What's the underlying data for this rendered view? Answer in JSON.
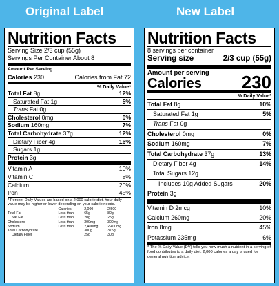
{
  "headings": {
    "original": "Original Label",
    "new": "New Label"
  },
  "original": {
    "title": "Nutrition Facts",
    "serving_size": "Serving Size 2/3 cup (55g)",
    "servings": "Servings Per Container About 8",
    "amount_per_serving": "Amount Per Serving",
    "calories_label": "Calories",
    "calories_value": "230",
    "calories_fat": "Calories from Fat 72",
    "dv_header": "% Daily Value*",
    "rows": [
      {
        "label": "Total Fat",
        "amount": "8g",
        "dv": "12%",
        "bold": true,
        "indent": 0
      },
      {
        "label": "Saturated Fat",
        "amount": "1g",
        "dv": "5%",
        "bold": false,
        "indent": 1
      },
      {
        "label": "Trans",
        "amount": "Fat 0g",
        "dv": "",
        "bold": false,
        "indent": 1,
        "italic": true
      },
      {
        "label": "Cholesterol",
        "amount": "0mg",
        "dv": "0%",
        "bold": true,
        "indent": 0
      },
      {
        "label": "Sodium",
        "amount": "160mg",
        "dv": "7%",
        "bold": true,
        "indent": 0
      },
      {
        "label": "Total Carbohydrate",
        "amount": "37g",
        "dv": "12%",
        "bold": true,
        "indent": 0
      },
      {
        "label": "Dietary Fiber",
        "amount": "4g",
        "dv": "16%",
        "bold": false,
        "indent": 1
      },
      {
        "label": "Sugars",
        "amount": "1g",
        "dv": "",
        "bold": false,
        "indent": 1
      },
      {
        "label": "Protein",
        "amount": "3g",
        "dv": "",
        "bold": true,
        "indent": 0
      }
    ],
    "vitamins": [
      {
        "label": "Vitamin A",
        "dv": "10%"
      },
      {
        "label": "Vitamin C",
        "dv": "8%"
      },
      {
        "label": "Calcium",
        "dv": "20%"
      },
      {
        "label": "Iron",
        "dv": "45%"
      }
    ],
    "footnote": "* Percent Daily Values are based on a 2,000 calorie diet. Your daily value may be higher or lower depending on your calorie needs.",
    "table_header": [
      "",
      "Calories:",
      "2,000",
      "2,500"
    ],
    "table_rows": [
      [
        "Total Fat",
        "Less than",
        "65g",
        "80g"
      ],
      [
        "Sat Fat",
        "Less than",
        "20g",
        "25g"
      ],
      [
        "Cholesterol",
        "Less than",
        "300mg",
        "300mg"
      ],
      [
        "Sodium",
        "Less than",
        "2,400mg",
        "2,400mg"
      ],
      [
        "Total Carbohydrate",
        "",
        "300g",
        "375g"
      ],
      [
        "Dietary Fiber",
        "",
        "25g",
        "30g"
      ]
    ]
  },
  "new": {
    "title": "Nutrition Facts",
    "servings": "8 servings per container",
    "serving_size_label": "Serving size",
    "serving_size_value": "2/3 cup (55g)",
    "amount_per_serving": "Amount per serving",
    "calories_label": "Calories",
    "calories_value": "230",
    "dv_header": "% Daily Value*",
    "rows": [
      {
        "label": "Total Fat",
        "amount": "8g",
        "dv": "10%",
        "bold": true,
        "indent": 0
      },
      {
        "label": "Saturated Fat",
        "amount": "1g",
        "dv": "5%",
        "bold": false,
        "indent": 1
      },
      {
        "label": "Trans",
        "amount": "Fat 0g",
        "dv": "",
        "bold": false,
        "indent": 1,
        "italic": true
      },
      {
        "label": "Cholesterol",
        "amount": "0mg",
        "dv": "0%",
        "bold": true,
        "indent": 0
      },
      {
        "label": "Sodium",
        "amount": "160mg",
        "dv": "7%",
        "bold": true,
        "indent": 0
      },
      {
        "label": "Total Carbohydrate",
        "amount": "37g",
        "dv": "13%",
        "bold": true,
        "indent": 0
      },
      {
        "label": "Dietary Fiber",
        "amount": "4g",
        "dv": "14%",
        "bold": false,
        "indent": 1
      },
      {
        "label": "Total Sugars",
        "amount": "12g",
        "dv": "",
        "bold": false,
        "indent": 1
      },
      {
        "label": "Includes 10g Added Sugars",
        "amount": "",
        "dv": "20%",
        "bold": false,
        "indent": 2
      },
      {
        "label": "Protein",
        "amount": "3g",
        "dv": "",
        "bold": true,
        "indent": 0
      }
    ],
    "vitamins": [
      {
        "label": "Vitamin D 2mcg",
        "dv": "10%"
      },
      {
        "label": "Calcium 260mg",
        "dv": "20%"
      },
      {
        "label": "Iron 8mg",
        "dv": "45%"
      },
      {
        "label": "Potassium 235mg",
        "dv": "6%"
      }
    ],
    "footnote": "* The % Daily Value (DV) tells you how much a nutrient in a serving of food contributes to a daily diet. 2,000 calories a day is used for general nutrition advice."
  }
}
